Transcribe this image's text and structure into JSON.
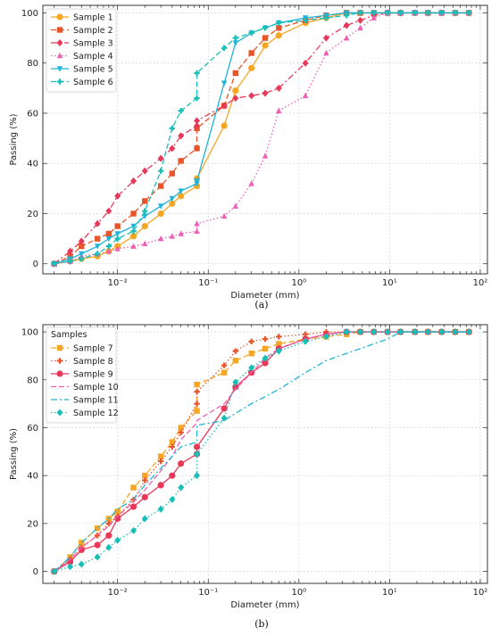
{
  "chart_data": [
    {
      "type": "line",
      "panel_label": "(a)",
      "xlabel": "Diameter (mm)",
      "ylabel": "Passing (%)",
      "xscale": "log",
      "xlim": [
        0.0015,
        120
      ],
      "ylim": [
        -4,
        103
      ],
      "x_ticks": [
        0.01,
        0.1,
        1,
        10,
        100
      ],
      "x_tick_labels": [
        "10⁻²",
        "10⁻¹",
        "10⁰",
        "10¹",
        "10²"
      ],
      "y_ticks": [
        0,
        20,
        40,
        60,
        80,
        100
      ],
      "grid": true,
      "legend_title": "",
      "legend_position": "upper-left",
      "series": [
        {
          "name": "Sample 1",
          "color": "#f5a623",
          "dash": "",
          "marker": "circle",
          "x": [
            0.002,
            0.003,
            0.004,
            0.006,
            0.008,
            0.01,
            0.015,
            0.02,
            0.03,
            0.04,
            0.05,
            0.075,
            0.075,
            0.15,
            0.2,
            0.3,
            0.425,
            0.6,
            1.18,
            2.0,
            3.35,
            4.75,
            6.7,
            9.5,
            13.2,
            19,
            26.5,
            37.5,
            53,
            75
          ],
          "y": [
            0,
            1,
            2,
            3,
            5,
            7,
            11,
            15,
            20,
            24,
            27,
            31,
            34,
            55,
            69,
            78,
            87,
            91,
            96,
            98,
            100,
            100,
            100,
            100,
            100,
            100,
            100,
            100,
            100,
            100
          ]
        },
        {
          "name": "Sample 2",
          "color": "#e8552b",
          "dash": "6,3",
          "marker": "square",
          "x": [
            0.002,
            0.003,
            0.004,
            0.006,
            0.008,
            0.01,
            0.015,
            0.02,
            0.03,
            0.04,
            0.05,
            0.075,
            0.075,
            0.15,
            0.2,
            0.3,
            0.425,
            0.6,
            1.18,
            2.0,
            3.35,
            4.75,
            6.7,
            9.5,
            13.2,
            19,
            26.5,
            37.5,
            53,
            75
          ],
          "y": [
            0,
            3,
            7,
            10,
            12,
            15,
            20,
            25,
            31,
            36,
            41,
            46,
            54,
            63,
            76,
            84,
            90,
            94,
            97,
            99,
            100,
            100,
            100,
            100,
            100,
            100,
            100,
            100,
            100,
            100
          ]
        },
        {
          "name": "Sample 3",
          "color": "#e8385a",
          "dash": "7,3,2,3",
          "marker": "diamond",
          "x": [
            0.002,
            0.003,
            0.004,
            0.006,
            0.008,
            0.01,
            0.015,
            0.02,
            0.03,
            0.04,
            0.05,
            0.075,
            0.075,
            0.15,
            0.2,
            0.3,
            0.425,
            0.6,
            1.18,
            2.0,
            3.35,
            4.75,
            6.7,
            9.5,
            13.2,
            19,
            26.5,
            37.5,
            53,
            75
          ],
          "y": [
            0,
            5,
            9,
            16,
            21,
            27,
            33,
            37,
            42,
            46,
            51,
            55,
            57,
            63,
            66,
            67,
            68,
            70,
            80,
            90,
            95,
            97,
            99,
            100,
            100,
            100,
            100,
            100,
            100,
            100
          ]
        },
        {
          "name": "Sample 4",
          "color": "#ee5fb5",
          "dash": "1.5,2.5",
          "marker": "triangle",
          "x": [
            0.002,
            0.003,
            0.004,
            0.006,
            0.008,
            0.01,
            0.015,
            0.02,
            0.03,
            0.04,
            0.05,
            0.075,
            0.075,
            0.15,
            0.2,
            0.3,
            0.425,
            0.6,
            1.18,
            2.0,
            3.35,
            4.75,
            6.7,
            9.5,
            13.2,
            19,
            26.5,
            37.5,
            53,
            75
          ],
          "y": [
            0,
            1,
            3,
            4,
            5,
            6,
            7,
            8,
            10,
            11,
            12,
            13,
            16,
            19,
            23,
            32,
            43,
            61,
            67,
            84,
            90,
            94,
            98,
            100,
            100,
            100,
            100,
            100,
            100,
            100
          ]
        },
        {
          "name": "Sample 5",
          "color": "#1fb4d8",
          "dash": "",
          "marker": "triangle-down",
          "x": [
            0.002,
            0.003,
            0.004,
            0.006,
            0.008,
            0.01,
            0.015,
            0.02,
            0.03,
            0.04,
            0.05,
            0.075,
            0.075,
            0.15,
            0.2,
            0.3,
            0.425,
            0.6,
            1.18,
            2.0,
            3.35,
            4.75,
            6.7,
            9.5,
            13.2,
            19,
            26.5,
            37.5,
            53,
            75
          ],
          "y": [
            0,
            2,
            4,
            7,
            10,
            12,
            15,
            19,
            23,
            26,
            29,
            32,
            33,
            72,
            88,
            92,
            94,
            96,
            98,
            99,
            100,
            100,
            100,
            100,
            100,
            100,
            100,
            100,
            100,
            100
          ]
        },
        {
          "name": "Sample 6",
          "color": "#17bfb6",
          "dash": "6,3",
          "marker": "plus",
          "x": [
            0.002,
            0.003,
            0.004,
            0.006,
            0.008,
            0.01,
            0.015,
            0.02,
            0.03,
            0.04,
            0.05,
            0.075,
            0.075,
            0.15,
            0.2,
            0.3,
            0.425,
            0.6,
            1.18,
            2.0,
            3.35,
            4.75,
            6.7,
            9.5,
            13.2,
            19,
            26.5,
            37.5,
            53,
            75
          ],
          "y": [
            0,
            1,
            2,
            4,
            7,
            10,
            13,
            21,
            37,
            54,
            61,
            66,
            76,
            86,
            90,
            92,
            94,
            96,
            97,
            98,
            99,
            100,
            100,
            100,
            100,
            100,
            100,
            100,
            100,
            100
          ]
        }
      ]
    },
    {
      "type": "line",
      "panel_label": "(b)",
      "xlabel": "Diameter (mm)",
      "ylabel": "Passing (%)",
      "xscale": "log",
      "xlim": [
        0.0015,
        120
      ],
      "ylim": [
        -5,
        103
      ],
      "x_ticks": [
        0.01,
        0.1,
        1,
        10,
        100
      ],
      "x_tick_labels": [
        "10⁻²",
        "10⁻¹",
        "10⁰",
        "10¹",
        "10²"
      ],
      "y_ticks": [
        0,
        20,
        40,
        60,
        80,
        100
      ],
      "grid": true,
      "legend_title": "Samples",
      "legend_position": "upper-left",
      "series": [
        {
          "name": "Sample 7",
          "color": "#f5a623",
          "dash": "6,3",
          "marker": "square",
          "x": [
            0.002,
            0.003,
            0.004,
            0.006,
            0.008,
            0.01,
            0.015,
            0.02,
            0.03,
            0.04,
            0.05,
            0.075,
            0.075,
            0.15,
            0.2,
            0.3,
            0.425,
            0.6,
            1.18,
            2.0,
            3.35,
            4.75,
            6.7,
            9.5,
            13.2,
            19,
            26.5,
            37.5,
            53,
            75
          ],
          "y": [
            0,
            6,
            12,
            18,
            22,
            25,
            35,
            40,
            48,
            54,
            60,
            67,
            78,
            83,
            88,
            91,
            93,
            95,
            97,
            98,
            99,
            100,
            100,
            100,
            100,
            100,
            100,
            100,
            100,
            100
          ]
        },
        {
          "name": "Sample 8",
          "color": "#e8552b",
          "dash": "1.5,2.5",
          "marker": "plus",
          "x": [
            0.002,
            0.003,
            0.004,
            0.006,
            0.008,
            0.01,
            0.015,
            0.02,
            0.03,
            0.04,
            0.05,
            0.075,
            0.075,
            0.15,
            0.2,
            0.3,
            0.425,
            0.6,
            1.18,
            2.0,
            3.35,
            4.75,
            6.7,
            9.5,
            13.2,
            19,
            26.5,
            37.5,
            53,
            75
          ],
          "y": [
            0,
            5,
            10,
            15,
            20,
            23,
            30,
            38,
            46,
            52,
            58,
            70,
            75,
            86,
            92,
            96,
            97,
            98,
            99,
            100,
            100,
            100,
            100,
            100,
            100,
            100,
            100,
            100,
            100,
            100
          ]
        },
        {
          "name": "Sample 9",
          "color": "#e8385a",
          "dash": "",
          "marker": "circle",
          "x": [
            0.002,
            0.003,
            0.004,
            0.006,
            0.008,
            0.01,
            0.015,
            0.02,
            0.03,
            0.04,
            0.05,
            0.075,
            0.075,
            0.15,
            0.2,
            0.3,
            0.425,
            0.6,
            1.18,
            2.0,
            3.35,
            4.75,
            6.7,
            9.5,
            13.2,
            19,
            26.5,
            37.5,
            53,
            75
          ],
          "y": [
            0,
            4,
            9,
            11,
            15,
            22,
            27,
            31,
            36,
            40,
            45,
            49,
            52,
            68,
            77,
            83,
            87,
            93,
            97,
            99,
            100,
            100,
            100,
            100,
            100,
            100,
            100,
            100,
            100,
            100
          ]
        },
        {
          "name": "Sample 10",
          "color": "#ee5fb5",
          "dash": "6,3",
          "marker": "none",
          "x": [
            0.002,
            0.003,
            0.004,
            0.006,
            0.008,
            0.01,
            0.015,
            0.02,
            0.03,
            0.04,
            0.05,
            0.075,
            0.075,
            0.15,
            0.2,
            0.3,
            0.425,
            0.6,
            1.18,
            2.0,
            3.35,
            4.75,
            6.7,
            9.5,
            13.2,
            19,
            26.5,
            37.5,
            53,
            75
          ],
          "y": [
            0,
            5,
            10,
            15,
            19,
            23,
            29,
            34,
            42,
            48,
            55,
            62,
            63,
            70,
            76,
            83,
            89,
            93,
            97,
            99,
            100,
            100,
            100,
            100,
            100,
            100,
            100,
            100,
            100,
            100
          ]
        },
        {
          "name": "Sample 11",
          "color": "#1fb4d8",
          "dash": "7,3,2,3",
          "marker": "none",
          "x": [
            0.002,
            0.003,
            0.004,
            0.006,
            0.008,
            0.01,
            0.015,
            0.02,
            0.03,
            0.04,
            0.05,
            0.075,
            0.075,
            0.15,
            0.2,
            0.3,
            0.425,
            0.6,
            1.18,
            2.0,
            3.35,
            4.75,
            6.7,
            9.5,
            13.2,
            19,
            26.5,
            37.5,
            53,
            75
          ],
          "y": [
            0,
            6,
            12,
            18,
            22,
            26,
            30,
            36,
            43,
            48,
            52,
            54,
            61,
            63,
            66,
            70,
            73,
            76,
            83,
            88,
            91,
            93,
            95,
            97,
            100,
            100,
            100,
            100,
            100,
            100
          ]
        },
        {
          "name": "Sample 12",
          "color": "#17bfb6",
          "dash": "1.5,2.5",
          "marker": "diamond",
          "x": [
            0.002,
            0.003,
            0.004,
            0.006,
            0.008,
            0.01,
            0.015,
            0.02,
            0.03,
            0.04,
            0.05,
            0.075,
            0.075,
            0.15,
            0.2,
            0.3,
            0.425,
            0.6,
            1.18,
            2.0,
            3.35,
            4.75,
            6.7,
            9.5,
            13.2,
            19,
            26.5,
            37.5,
            53,
            75
          ],
          "y": [
            0,
            2,
            3,
            6,
            10,
            13,
            17,
            22,
            26,
            30,
            35,
            40,
            49,
            64,
            79,
            85,
            89,
            92,
            96,
            98,
            100,
            100,
            100,
            100,
            100,
            100,
            100,
            100,
            100,
            100
          ]
        }
      ]
    }
  ]
}
